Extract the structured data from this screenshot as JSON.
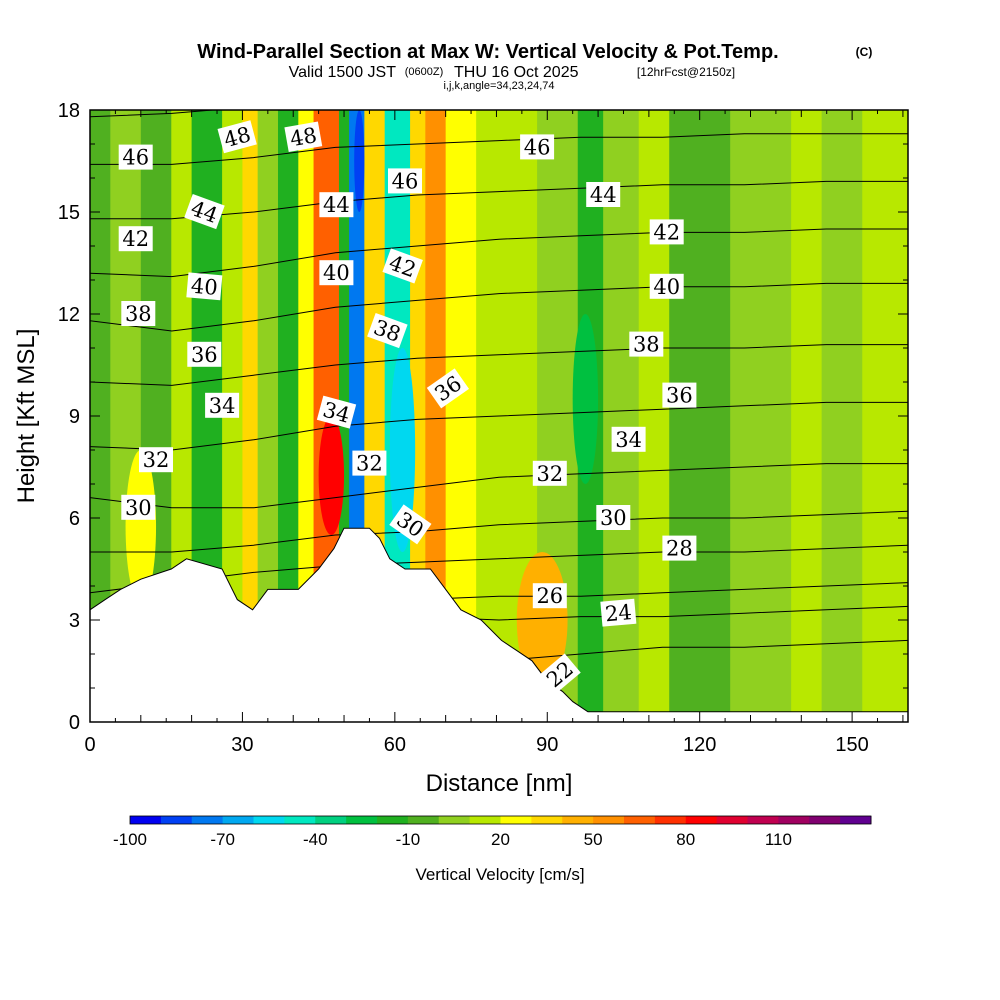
{
  "chart_data": {
    "type": "contour-section",
    "title": "Wind-Parallel Section at Max W: Vertical Velocity & Pot.Temp.",
    "title_mark": "(C)",
    "subtitle_valid": "Valid 1500 JST",
    "subtitle_utc": "(0600Z)",
    "subtitle_date": "THU 16 Oct 2025",
    "subtitle_fcst": "[12hrFcst@2150z]",
    "subtitle_indices": "i,j,k,angle=34,23,24,74",
    "xlabel": "Distance [nm]",
    "ylabel": "Height [Kft MSL]",
    "xlim": [
      0,
      161
    ],
    "ylim": [
      0,
      18
    ],
    "x_ticks": [
      0,
      30,
      60,
      90,
      120,
      150
    ],
    "y_ticks": [
      0,
      3,
      6,
      9,
      12,
      15,
      18
    ],
    "colorbar": {
      "label": "Vertical Velocity [cm/s]",
      "levels": [
        -100,
        -90,
        -80,
        -70,
        -60,
        -50,
        -40,
        -30,
        -20,
        -10,
        0,
        10,
        20,
        30,
        40,
        50,
        60,
        70,
        80,
        90,
        100,
        110,
        120,
        130
      ],
      "tick_labels": [
        -100,
        -70,
        -40,
        -10,
        20,
        50,
        80,
        110
      ],
      "colors": [
        "#0000f0",
        "#0040f4",
        "#0078f0",
        "#00a8f0",
        "#00d8f0",
        "#00e8c0",
        "#00d080",
        "#00c040",
        "#20b020",
        "#50b020",
        "#90d020",
        "#b8e800",
        "#ffff00",
        "#ffd800",
        "#ffb000",
        "#ff9000",
        "#ff6000",
        "#ff3000",
        "#ff0000",
        "#e00030",
        "#c00050",
        "#a00060",
        "#800070",
        "#600090"
      ]
    },
    "w_bands": [
      {
        "x": [
          0,
          4
        ],
        "w": -10
      },
      {
        "x": [
          4,
          10
        ],
        "w": 0
      },
      {
        "x": [
          10,
          16
        ],
        "w": -10
      },
      {
        "x": [
          16,
          20
        ],
        "w": 10
      },
      {
        "x": [
          20,
          26
        ],
        "w": -20
      },
      {
        "x": [
          26,
          30
        ],
        "w": 10
      },
      {
        "x": [
          30,
          33
        ],
        "w": 30
      },
      {
        "x": [
          33,
          37
        ],
        "w": 0
      },
      {
        "x": [
          37,
          41
        ],
        "w": -20
      },
      {
        "x": [
          41,
          44
        ],
        "w": 20
      },
      {
        "x": [
          44,
          49
        ],
        "w": 60
      },
      {
        "x": [
          49,
          51
        ],
        "w": -20
      },
      {
        "x": [
          51,
          54
        ],
        "w": -80
      },
      {
        "x": [
          54,
          58
        ],
        "w": 30
      },
      {
        "x": [
          58,
          63
        ],
        "w": -50
      },
      {
        "x": [
          63,
          66
        ],
        "w": 30
      },
      {
        "x": [
          66,
          70
        ],
        "w": 50
      },
      {
        "x": [
          70,
          76
        ],
        "w": 20
      },
      {
        "x": [
          76,
          88
        ],
        "w": 10
      },
      {
        "x": [
          88,
          96
        ],
        "w": 0
      },
      {
        "x": [
          96,
          101
        ],
        "w": -20
      },
      {
        "x": [
          101,
          108
        ],
        "w": 0
      },
      {
        "x": [
          108,
          114
        ],
        "w": 10
      },
      {
        "x": [
          114,
          126
        ],
        "w": -10
      },
      {
        "x": [
          126,
          138
        ],
        "w": 0
      },
      {
        "x": [
          138,
          144
        ],
        "w": 10
      },
      {
        "x": [
          144,
          152
        ],
        "w": 0
      },
      {
        "x": [
          152,
          161
        ],
        "w": 10
      }
    ],
    "w_blobs": [
      {
        "x": [
          45,
          50
        ],
        "y": [
          5.5,
          9
        ],
        "w": 80
      },
      {
        "x": [
          52,
          54
        ],
        "y": [
          15,
          18
        ],
        "w": -90
      },
      {
        "x": [
          59,
          64
        ],
        "y": [
          5,
          11
        ],
        "w": -60
      },
      {
        "x": [
          84,
          94
        ],
        "y": [
          1,
          5
        ],
        "w": 40
      },
      {
        "x": [
          95,
          100
        ],
        "y": [
          7,
          12
        ],
        "w": -30
      },
      {
        "x": [
          7,
          13
        ],
        "y": [
          3.5,
          8
        ],
        "w": 20
      }
    ],
    "terrain": [
      [
        0,
        3.3
      ],
      [
        3,
        3.6
      ],
      [
        6,
        3.9
      ],
      [
        10,
        4.2
      ],
      [
        16,
        4.5
      ],
      [
        19,
        4.8
      ],
      [
        26,
        4.5
      ],
      [
        29,
        3.6
      ],
      [
        32,
        3.3
      ],
      [
        35,
        3.9
      ],
      [
        41,
        3.9
      ],
      [
        45,
        4.5
      ],
      [
        48,
        5.1
      ],
      [
        50,
        5.7
      ],
      [
        55,
        5.7
      ],
      [
        57,
        5.4
      ],
      [
        59,
        4.8
      ],
      [
        62,
        4.5
      ],
      [
        67,
        4.5
      ],
      [
        70,
        3.9
      ],
      [
        73,
        3.3
      ],
      [
        77,
        3
      ],
      [
        81,
        2.4
      ],
      [
        84,
        2.1
      ],
      [
        87,
        1.8
      ],
      [
        90,
        1.2
      ],
      [
        93,
        0.9
      ],
      [
        95,
        0.6
      ],
      [
        98,
        0.3
      ],
      [
        161,
        0.3
      ]
    ],
    "theta_isolines": [
      {
        "value": 22,
        "label": "22",
        "y": [
          0.4,
          0.6,
          1.2,
          1.7,
          1.9,
          1.8,
          2.0,
          2.2,
          2.2,
          2.3,
          2.4
        ]
      },
      {
        "value": 24,
        "label": "24",
        "y": [
          0.6,
          1.0,
          1.8,
          2.8,
          3.1,
          3.0,
          3.1,
          3.1,
          3.2,
          3.3,
          3.4
        ]
      },
      {
        "value": 26,
        "label": "26",
        "y": [
          2.6,
          2.9,
          3.2,
          3.5,
          3.6,
          3.7,
          3.7,
          3.8,
          3.9,
          4.0,
          4.1
        ]
      },
      {
        "value": 28,
        "label": "28",
        "y": [
          3.8,
          4.1,
          4.4,
          4.6,
          4.7,
          4.8,
          4.9,
          5.0,
          5.0,
          5.1,
          5.2
        ]
      },
      {
        "value": 30,
        "label": "30",
        "y": [
          5.0,
          5.0,
          5.2,
          5.5,
          5.6,
          5.8,
          5.9,
          6.0,
          6.0,
          6.1,
          6.2
        ]
      },
      {
        "value": 32,
        "label": "32",
        "y": [
          6.6,
          6.3,
          6.3,
          6.6,
          6.9,
          7.2,
          7.3,
          7.4,
          7.5,
          7.6,
          7.6
        ]
      },
      {
        "value": 34,
        "label": "34",
        "y": [
          8.1,
          8.0,
          8.3,
          8.7,
          8.9,
          9.0,
          9.1,
          9.2,
          9.3,
          9.4,
          9.4
        ]
      },
      {
        "value": 36,
        "label": "36",
        "y": [
          10.0,
          9.9,
          10.2,
          10.5,
          10.7,
          10.8,
          10.9,
          11.0,
          11.0,
          11.1,
          11.1
        ]
      },
      {
        "value": 38,
        "label": "38",
        "y": [
          11.8,
          11.5,
          11.8,
          12.2,
          12.4,
          12.6,
          12.7,
          12.8,
          12.8,
          12.9,
          12.9
        ]
      },
      {
        "value": 40,
        "label": "40",
        "y": [
          13.2,
          13.1,
          13.4,
          13.8,
          14.0,
          14.2,
          14.3,
          14.4,
          14.4,
          14.5,
          14.5
        ]
      },
      {
        "value": 42,
        "label": "42",
        "y": [
          14.8,
          14.8,
          15.0,
          15.3,
          15.5,
          15.6,
          15.7,
          15.8,
          15.8,
          15.9,
          15.9
        ]
      },
      {
        "value": 44,
        "label": "44",
        "y": [
          16.4,
          16.4,
          16.6,
          16.9,
          17.0,
          17.1,
          17.2,
          17.2,
          17.3,
          17.3,
          17.3
        ]
      },
      {
        "value": 46,
        "label": "46",
        "y": [
          17.8,
          17.9,
          18.1,
          18.3,
          18.4,
          18.5,
          18.5,
          18.6,
          18.6,
          18.6,
          18.6
        ]
      }
    ],
    "theta_isoline_x": [
      [
        5,
        98
      ],
      [
        5,
        110
      ],
      [
        60,
        115
      ],
      [
        50,
        125
      ],
      [
        8,
        135
      ],
      [
        8,
        110
      ],
      [
        15,
        115
      ],
      [
        15,
        130
      ],
      [
        10,
        120
      ],
      [
        15,
        120
      ],
      [
        10,
        120
      ],
      [
        20,
        100
      ],
      [
        10,
        90
      ]
    ],
    "contour_labels": [
      {
        "text": "48",
        "x": 29,
        "y": 17.2,
        "rot": -15
      },
      {
        "text": "48",
        "x": 42,
        "y": 17.2,
        "rot": -10
      },
      {
        "text": "46",
        "x": 9,
        "y": 16.6,
        "rot": 0
      },
      {
        "text": "46",
        "x": 62,
        "y": 15.9,
        "rot": 0
      },
      {
        "text": "46",
        "x": 88,
        "y": 16.9,
        "rot": 0
      },
      {
        "text": "44",
        "x": 22.5,
        "y": 15.0,
        "rot": 20
      },
      {
        "text": "44",
        "x": 48.5,
        "y": 15.2,
        "rot": 0
      },
      {
        "text": "44",
        "x": 101,
        "y": 15.5,
        "rot": 0
      },
      {
        "text": "42",
        "x": 9,
        "y": 14.2,
        "rot": 0
      },
      {
        "text": "42",
        "x": 61.5,
        "y": 13.4,
        "rot": 20
      },
      {
        "text": "42",
        "x": 113.5,
        "y": 14.4,
        "rot": 0
      },
      {
        "text": "40",
        "x": 22.5,
        "y": 12.8,
        "rot": 5
      },
      {
        "text": "40",
        "x": 48.5,
        "y": 13.2,
        "rot": 0
      },
      {
        "text": "40",
        "x": 113.5,
        "y": 12.8,
        "rot": 0
      },
      {
        "text": "38",
        "x": 9.5,
        "y": 12.0,
        "rot": 0
      },
      {
        "text": "38",
        "x": 58.5,
        "y": 11.5,
        "rot": 20
      },
      {
        "text": "38",
        "x": 109.5,
        "y": 11.1,
        "rot": 0
      },
      {
        "text": "36",
        "x": 22.5,
        "y": 10.8,
        "rot": 0
      },
      {
        "text": "36",
        "x": 70.5,
        "y": 9.8,
        "rot": -35
      },
      {
        "text": "36",
        "x": 116,
        "y": 9.6,
        "rot": 0
      },
      {
        "text": "34",
        "x": 26,
        "y": 9.3,
        "rot": 0
      },
      {
        "text": "34",
        "x": 48.5,
        "y": 9.1,
        "rot": 15
      },
      {
        "text": "34",
        "x": 106,
        "y": 8.3,
        "rot": 0
      },
      {
        "text": "32",
        "x": 13,
        "y": 7.7,
        "rot": 0
      },
      {
        "text": "32",
        "x": 55,
        "y": 7.6,
        "rot": 0
      },
      {
        "text": "32",
        "x": 90.5,
        "y": 7.3,
        "rot": 0
      },
      {
        "text": "30",
        "x": 9.5,
        "y": 6.3,
        "rot": 0
      },
      {
        "text": "30",
        "x": 63,
        "y": 5.8,
        "rot": 35
      },
      {
        "text": "30",
        "x": 103,
        "y": 6.0,
        "rot": 0
      },
      {
        "text": "28",
        "x": 116,
        "y": 5.1,
        "rot": 0
      },
      {
        "text": "26",
        "x": 90.5,
        "y": 3.7,
        "rot": 0
      },
      {
        "text": "24",
        "x": 104,
        "y": 3.2,
        "rot": -5
      },
      {
        "text": "22",
        "x": 92.5,
        "y": 1.4,
        "rot": -40
      }
    ]
  }
}
